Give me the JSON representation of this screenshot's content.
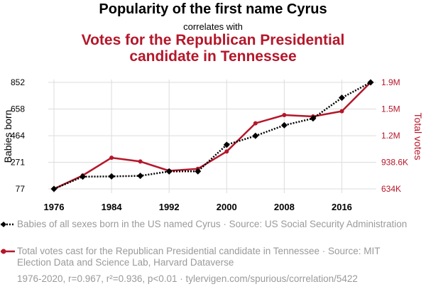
{
  "titles": {
    "main": "Popularity of the first name Cyrus",
    "connector": "correlates with",
    "secondary_line1": "Votes for the Republican Presidential",
    "secondary_line2": "candidate in Tennessee"
  },
  "chart_data": {
    "type": "line",
    "x": [
      1976,
      1980,
      1984,
      1988,
      1992,
      1996,
      2000,
      2004,
      2008,
      2012,
      2016,
      2020
    ],
    "x_ticks": [
      1976,
      1984,
      1992,
      2000,
      2008,
      2016
    ],
    "xlim": [
      1976,
      2020
    ],
    "series": [
      {
        "name": "Babies of all sexes born in the US named Cyrus",
        "axis": "left",
        "color": "#000000",
        "style": "dotted",
        "marker": "diamond",
        "values": [
          77,
          166,
          168,
          172,
          204,
          205,
          398,
          463,
          540,
          590,
          740,
          852
        ]
      },
      {
        "name": "Total votes cast for the Republican Presidential candidate in Tennessee",
        "axis": "right",
        "color": "#b5172a",
        "style": "solid",
        "marker": "circle",
        "values": [
          633969,
          787761,
          990212,
          947233,
          841300,
          863530,
          1061949,
          1384375,
          1479178,
          1462330,
          1522925,
          1852475
        ]
      }
    ],
    "y_left": {
      "label": "Babies born",
      "ylim": [
        77,
        852
      ],
      "ticks": [
        77,
        271,
        464,
        658,
        852
      ],
      "tick_labels": [
        "77",
        "271",
        "464",
        "658",
        "852"
      ]
    },
    "y_right": {
      "label": "Total votes",
      "ylim": [
        633969,
        1852475
      ],
      "ticks": [
        633969,
        938595,
        1243222,
        1547848,
        1852475
      ],
      "tick_labels": [
        "634K",
        "938.6K",
        "1.2M",
        "1.5M",
        "1.9M"
      ]
    }
  },
  "legend": {
    "series1": "Babies of all sexes born in the US named Cyrus · Source: US Social Security Administration",
    "series2": "Total votes cast for the Republican Presidential candidate in Tennessee · Source: MIT Election Data and Science Lab, Harvard Dataverse"
  },
  "footer": "1976-2020, r=0.967, r²=0.936, p<0.01 · tylervigen.com/spurious/correlation/5422",
  "colors": {
    "accent": "#b5172a",
    "muted": "#9a9a9a",
    "primary": "#000000"
  }
}
